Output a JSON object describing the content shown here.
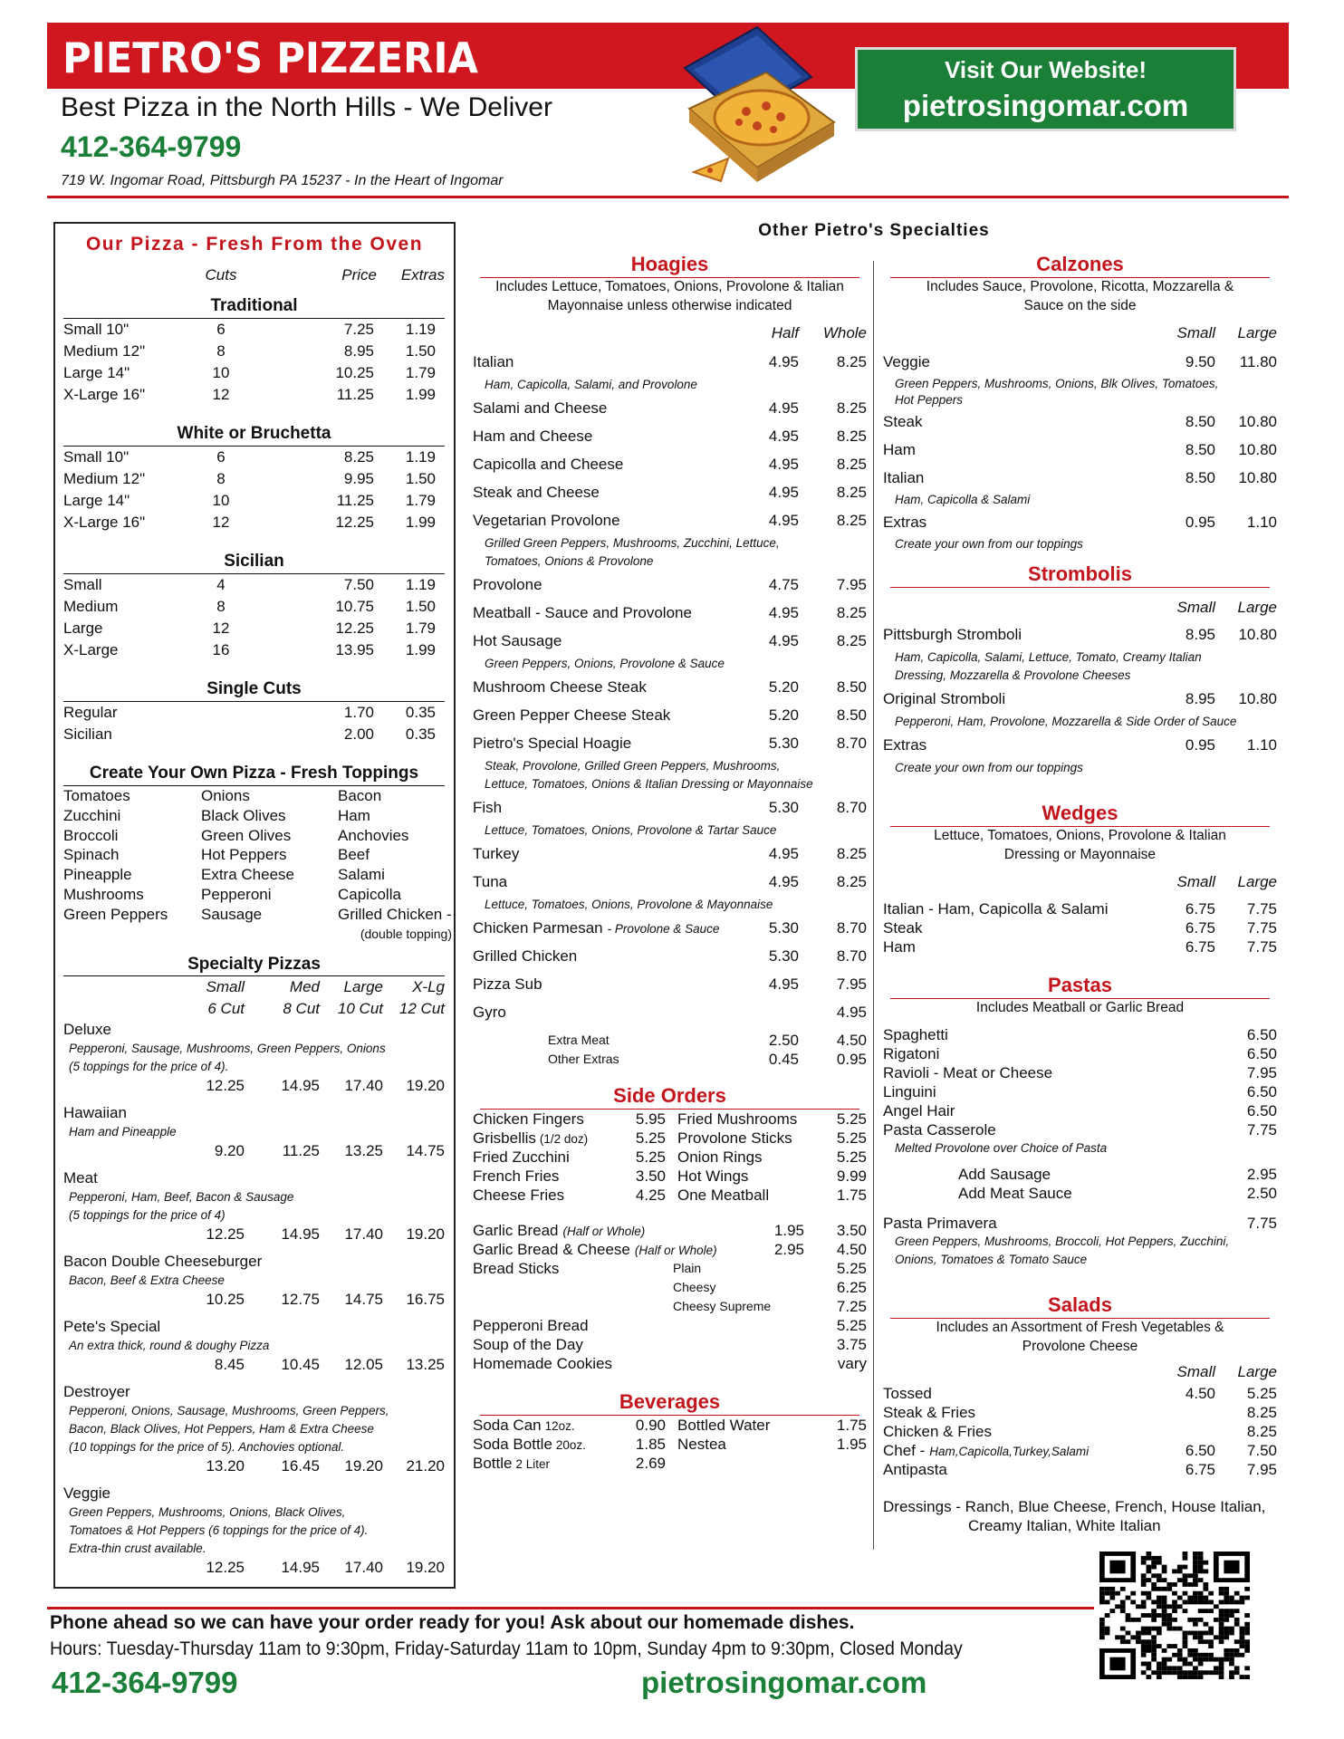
{
  "header": {
    "title": "PIETRO'S PIZZERIA",
    "tagline": "Best Pizza in the North Hills - We Deliver",
    "phone": "412-364-9799",
    "address": "719 W. Ingomar Road, Pittsburgh PA 15237 - In the Heart of Ingomar",
    "website_button": {
      "line1": "Visit Our Website!",
      "line2": "pietrosingomar.com"
    }
  },
  "pizza": {
    "title": "Our Pizza - Fresh From the Oven",
    "columns": [
      "Cuts",
      "Price",
      "Extras"
    ],
    "sections": [
      {
        "name": "Traditional",
        "rows": [
          {
            "size": "Small  10\"",
            "cuts": "6",
            "price": "7.25",
            "extras": "1.19"
          },
          {
            "size": "Medium  12\"",
            "cuts": "8",
            "price": "8.95",
            "extras": "1.50"
          },
          {
            "size": "Large  14\"",
            "cuts": "10",
            "price": "10.25",
            "extras": "1.79"
          },
          {
            "size": "X-Large  16\"",
            "cuts": "12",
            "price": "11.25",
            "extras": "1.99"
          }
        ]
      },
      {
        "name": "White or Bruchetta",
        "rows": [
          {
            "size": "Small  10\"",
            "cuts": "6",
            "price": "8.25",
            "extras": "1.19"
          },
          {
            "size": "Medium  12\"",
            "cuts": "8",
            "price": "9.95",
            "extras": "1.50"
          },
          {
            "size": "Large  14\"",
            "cuts": "10",
            "price": "11.25",
            "extras": "1.79"
          },
          {
            "size": "X-Large  16\"",
            "cuts": "12",
            "price": "12.25",
            "extras": "1.99"
          }
        ]
      },
      {
        "name": "Sicilian",
        "rows": [
          {
            "size": "Small",
            "cuts": "4",
            "price": "7.50",
            "extras": "1.19"
          },
          {
            "size": "Medium",
            "cuts": "8",
            "price": "10.75",
            "extras": "1.50"
          },
          {
            "size": "Large",
            "cuts": "12",
            "price": "12.25",
            "extras": "1.79"
          },
          {
            "size": "X-Large",
            "cuts": "16",
            "price": "13.95",
            "extras": "1.99"
          }
        ]
      },
      {
        "name": "Single Cuts",
        "rows": [
          {
            "size": "Regular",
            "price": "1.70",
            "extras": "0.35"
          },
          {
            "size": "Sicilian",
            "price": "2.00",
            "extras": "0.35"
          }
        ]
      }
    ],
    "toppings": {
      "title": "Create Your Own Pizza - Fresh Toppings",
      "rows": [
        [
          "Tomatoes",
          "Onions",
          "Bacon"
        ],
        [
          "Zucchini",
          "Black Olives",
          "Ham"
        ],
        [
          "Broccoli",
          "Green Olives",
          "Anchovies"
        ],
        [
          "Spinach",
          "Hot Peppers",
          "Beef"
        ],
        [
          "Pineapple",
          "Extra Cheese",
          "Salami"
        ],
        [
          "Mushrooms",
          "Pepperoni",
          "Capicolla"
        ],
        [
          "Green Peppers",
          "Sausage",
          "Grilled Chicken -"
        ]
      ],
      "note": "(double topping)"
    },
    "specialty": {
      "title": "Specialty Pizzas",
      "sizes": [
        "Small",
        "Med",
        "Large",
        "X-Lg"
      ],
      "cuts": [
        "6 Cut",
        "8 Cut",
        "10 Cut",
        "12 Cut"
      ],
      "items": [
        {
          "name": "Deluxe",
          "desc": [
            "Pepperoni, Sausage, Mushrooms, Green Peppers, Onions",
            "(5 toppings for the price of 4)."
          ],
          "prices": [
            "12.25",
            "14.95",
            "17.40",
            "19.20"
          ]
        },
        {
          "name": "Hawaiian",
          "desc": [
            "Ham and Pineapple"
          ],
          "prices": [
            "9.20",
            "11.25",
            "13.25",
            "14.75"
          ]
        },
        {
          "name": "Meat",
          "desc": [
            "Pepperoni, Ham, Beef, Bacon & Sausage",
            "(5 toppings for the price of 4)"
          ],
          "prices": [
            "12.25",
            "14.95",
            "17.40",
            "19.20"
          ]
        },
        {
          "name": "Bacon Double Cheeseburger",
          "desc": [
            "Bacon, Beef & Extra Cheese"
          ],
          "prices": [
            "10.25",
            "12.75",
            "14.75",
            "16.75"
          ]
        },
        {
          "name": "Pete's Special",
          "desc": [
            "An extra thick, round & doughy Pizza"
          ],
          "prices": [
            "8.45",
            "10.45",
            "12.05",
            "13.25"
          ]
        },
        {
          "name": "Destroyer",
          "desc": [
            "Pepperoni, Onions, Sausage, Mushrooms, Green Peppers,",
            "Bacon, Black Olives, Hot Peppers, Ham & Extra Cheese",
            "(10 toppings for the price of 5). Anchovies optional."
          ],
          "prices": [
            "13.20",
            "16.45",
            "19.20",
            "21.20"
          ]
        },
        {
          "name": "Veggie",
          "desc": [
            "Green Peppers, Mushrooms, Onions, Black Olives,",
            "Tomatoes & Hot Peppers (6 toppings for the price of 4).",
            "Extra-thin crust available."
          ],
          "prices": [
            "12.25",
            "14.95",
            "17.40",
            "19.20"
          ]
        }
      ]
    }
  },
  "specialties": {
    "title": "Other Pietro's Specialties",
    "hoagies": {
      "title": "Hoagies",
      "note": [
        "Includes Lettuce, Tomatoes, Onions, Provolone & Italian",
        "Mayonnaise unless otherwise indicated"
      ],
      "columns": [
        "Half",
        "Whole"
      ],
      "items": [
        {
          "name": "Italian",
          "half": "4.95",
          "whole": "8.25",
          "desc": [
            "Ham, Capicolla, Salami, and Provolone"
          ]
        },
        {
          "name": "Salami and Cheese",
          "half": "4.95",
          "whole": "8.25"
        },
        {
          "name": "Ham and Cheese",
          "half": "4.95",
          "whole": "8.25"
        },
        {
          "name": "Capicolla and Cheese",
          "half": "4.95",
          "whole": "8.25"
        },
        {
          "name": "Steak and Cheese",
          "half": "4.95",
          "whole": "8.25"
        },
        {
          "name": "Vegetarian Provolone",
          "half": "4.95",
          "whole": "8.25",
          "desc": [
            "Grilled Green Peppers, Mushrooms, Zucchini, Lettuce,",
            "Tomatoes, Onions & Provolone"
          ]
        },
        {
          "name": "Provolone",
          "half": "4.75",
          "whole": "7.95"
        },
        {
          "name": "Meatball - Sauce and Provolone",
          "half": "4.95",
          "whole": "8.25"
        },
        {
          "name": "Hot Sausage",
          "half": "4.95",
          "whole": "8.25",
          "desc": [
            "Green Peppers, Onions, Provolone & Sauce"
          ]
        },
        {
          "name": "Mushroom Cheese Steak",
          "half": "5.20",
          "whole": "8.50"
        },
        {
          "name": "Green Pepper Cheese Steak",
          "half": "5.20",
          "whole": "8.50"
        },
        {
          "name": "Pietro's Special Hoagie",
          "half": "5.30",
          "whole": "8.70",
          "desc": [
            "Steak, Provolone, Grilled Green Peppers, Mushrooms,",
            "Lettuce, Tomatoes, Onions & Italian Dressing or Mayonnaise"
          ]
        },
        {
          "name": "Fish",
          "half": "5.30",
          "whole": "8.70",
          "desc": [
            "Lettuce, Tomatoes, Onions, Provolone & Tartar Sauce"
          ]
        },
        {
          "name": "Turkey",
          "half": "4.95",
          "whole": "8.25"
        },
        {
          "name": "Tuna",
          "half": "4.95",
          "whole": "8.25",
          "desc": [
            "Lettuce, Tomatoes, Onions, Provolone & Mayonnaise"
          ]
        },
        {
          "name": "Chicken Parmesan",
          "name_note": "- Provolone & Sauce",
          "half": "5.30",
          "whole": "8.70"
        },
        {
          "name": "Grilled Chicken",
          "half": "5.30",
          "whole": "8.70"
        },
        {
          "name": "Pizza Sub",
          "half": "4.95",
          "whole": "7.95"
        },
        {
          "name": "Gyro",
          "whole": "4.95"
        }
      ],
      "extras": [
        {
          "name": "Extra Meat",
          "half": "2.50",
          "whole": "4.50"
        },
        {
          "name": "Other Extras",
          "half": "0.45",
          "whole": "0.95"
        }
      ]
    },
    "side_orders": {
      "title": "Side Orders",
      "pairs": [
        [
          {
            "name": "Chicken Fingers",
            "price": "5.95"
          },
          {
            "name": "Fried Mushrooms",
            "price": "5.25"
          }
        ],
        [
          {
            "name": "Grisbellis",
            "name_note": "(1/2 doz)",
            "price": "5.25"
          },
          {
            "name": "Provolone Sticks",
            "price": "5.25"
          }
        ],
        [
          {
            "name": "Fried Zucchini",
            "price": "5.25"
          },
          {
            "name": "Onion Rings",
            "price": "5.25"
          }
        ],
        [
          {
            "name": "French Fries",
            "price": "3.50"
          },
          {
            "name": "Hot Wings",
            "price": "9.99"
          }
        ],
        [
          {
            "name": "Cheese Fries",
            "price": "4.25"
          },
          {
            "name": "One Meatball",
            "price": "1.75"
          }
        ]
      ],
      "breads": [
        {
          "name": "Garlic Bread",
          "name_note": "(Half or Whole)",
          "half": "1.95",
          "whole": "3.50"
        },
        {
          "name": "Garlic Bread & Cheese",
          "name_note": "(Half or Whole)",
          "half": "2.95",
          "whole": "4.50"
        }
      ],
      "bread_sticks": {
        "name": "Bread Sticks",
        "options": [
          {
            "name": "Plain",
            "price": "5.25"
          },
          {
            "name": "Cheesy",
            "price": "6.25"
          },
          {
            "name": "Cheesy Supreme",
            "price": "7.25"
          }
        ]
      },
      "others": [
        {
          "name": "Pepperoni Bread",
          "price": "5.25"
        },
        {
          "name": "Soup of the Day",
          "price": "3.75"
        },
        {
          "name": "Homemade Cookies",
          "price": "vary"
        }
      ]
    },
    "beverages": {
      "title": "Beverages",
      "pairs": [
        [
          {
            "name": "Soda Can",
            "name_note": "12oz.",
            "price": "0.90"
          },
          {
            "name": "Bottled Water",
            "price": "1.75"
          }
        ],
        [
          {
            "name": "Soda Bottle",
            "name_note": "20oz.",
            "price": "1.85"
          },
          {
            "name": "Nestea",
            "price": "1.95"
          }
        ],
        [
          {
            "name": "Bottle",
            "name_note": "2 Liter",
            "price": "2.69"
          }
        ]
      ]
    },
    "calzones": {
      "title": "Calzones",
      "note": [
        "Includes Sauce, Provolone, Ricotta, Mozzarella &",
        "Sauce on the side"
      ],
      "columns": [
        "Small",
        "Large"
      ],
      "items": [
        {
          "name": "Veggie",
          "small": "9.50",
          "large": "11.80",
          "desc": [
            "Green Peppers, Mushrooms, Onions, Blk Olives, Tomatoes,",
            "Hot Peppers"
          ]
        },
        {
          "name": "Steak",
          "small": "8.50",
          "large": "10.80"
        },
        {
          "name": "Ham",
          "small": "8.50",
          "large": "10.80"
        },
        {
          "name": "Italian",
          "small": "8.50",
          "large": "10.80",
          "desc": [
            "Ham, Capicolla & Salami"
          ]
        },
        {
          "name": "Extras",
          "small": "0.95",
          "large": "1.10",
          "desc": [
            "Create your own from our toppings"
          ]
        }
      ]
    },
    "strombolis": {
      "title": "Strombolis",
      "columns": [
        "Small",
        "Large"
      ],
      "items": [
        {
          "name": "Pittsburgh Stromboli",
          "small": "8.95",
          "large": "10.80",
          "desc": [
            "Ham, Capicolla, Salami, Lettuce, Tomato, Creamy Italian",
            "Dressing, Mozzarella & Provolone Cheeses"
          ]
        },
        {
          "name": "Original Stromboli",
          "small": "8.95",
          "large": "10.80",
          "desc": [
            "Pepperoni, Ham, Provolone, Mozzarella & Side Order of Sauce"
          ]
        },
        {
          "name": "Extras",
          "small": "0.95",
          "large": "1.10",
          "desc": [
            "Create your own from our toppings"
          ]
        }
      ]
    },
    "wedges": {
      "title": "Wedges",
      "note": [
        "Lettuce, Tomatoes, Onions, Provolone & Italian",
        "Dressing or Mayonnaise"
      ],
      "columns": [
        "Small",
        "Large"
      ],
      "items": [
        {
          "name": "Italian - Ham, Capicolla & Salami",
          "small": "6.75",
          "large": "7.75"
        },
        {
          "name": "Steak",
          "small": "6.75",
          "large": "7.75"
        },
        {
          "name": "Ham",
          "small": "6.75",
          "large": "7.75"
        }
      ]
    },
    "pastas": {
      "title": "Pastas",
      "note": [
        "Includes Meatball or Garlic Bread"
      ],
      "items": [
        {
          "name": "Spaghetti",
          "price": "6.50"
        },
        {
          "name": "Rigatoni",
          "price": "6.50"
        },
        {
          "name": "Ravioli - Meat or Cheese",
          "price": "7.95"
        },
        {
          "name": "Linguini",
          "price": "6.50"
        },
        {
          "name": "Angel Hair",
          "price": "6.50"
        },
        {
          "name": "Pasta Casserole",
          "price": "7.75",
          "desc": [
            "Melted Provolone over Choice of Pasta"
          ]
        }
      ],
      "add_ons": [
        {
          "name": "Add Sausage",
          "price": "2.95"
        },
        {
          "name": "Add Meat Sauce",
          "price": "2.50"
        }
      ],
      "items_after": [
        {
          "name": "Pasta Primavera",
          "price": "7.75",
          "desc": [
            "Green Peppers, Mushrooms, Broccoli, Hot Peppers, Zucchini,",
            "Onions, Tomatoes & Tomato Sauce"
          ]
        }
      ]
    },
    "salads": {
      "title": "Salads",
      "note": [
        "Includes an Assortment of Fresh Vegetables &",
        "Provolone Cheese"
      ],
      "columns": [
        "Small",
        "Large"
      ],
      "items": [
        {
          "name": "Tossed",
          "small": "4.50",
          "large": "5.25"
        },
        {
          "name": "Steak & Fries",
          "large": "8.25"
        },
        {
          "name": "Chicken & Fries",
          "large": "8.25"
        },
        {
          "name": "Chef -",
          "name_note": "Ham,Capicolla,Turkey,Salami",
          "small": "6.50",
          "large": "7.50"
        },
        {
          "name": "Antipasta",
          "small": "6.75",
          "large": "7.95"
        }
      ],
      "dressings": [
        "Dressings - Ranch, Blue Cheese, French, House Italian,",
        "Creamy Italian, White Italian"
      ]
    }
  },
  "footer": {
    "line1": "Phone ahead so we can have your order ready for you! Ask about our homemade dishes.",
    "hours": "Hours: Tuesday-Thursday 11am to 9:30pm, Friday-Saturday 11am to 10pm, Sunday 4pm to 9:30pm, Closed Monday",
    "phone": "412-364-9799",
    "website": "pietrosingomar.com"
  }
}
